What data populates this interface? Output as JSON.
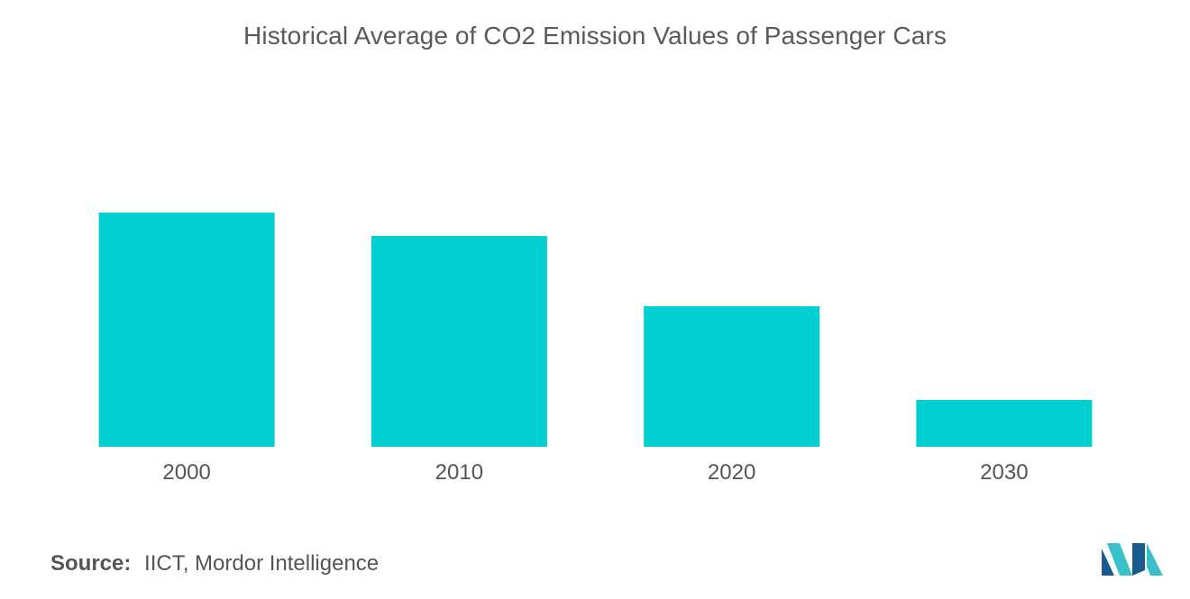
{
  "chart_data": {
    "type": "bar",
    "title": "Historical Average of CO2 Emission Values of Passenger Cars",
    "categories": [
      "2000",
      "2010",
      "2020",
      "2030"
    ],
    "values": [
      100,
      90,
      60,
      20
    ],
    "ylim": [
      0,
      100
    ],
    "xlabel": "",
    "ylabel": "",
    "grid": false,
    "legend": "none",
    "bar_color": "#00cfd1"
  },
  "source": {
    "label": "Source:",
    "text": "IICT, Mordor Intelligence"
  },
  "logo": {
    "icon": "mordor-intelligence-logo-icon",
    "color_dark": "#1b5a8c",
    "color_light": "#39c1c9"
  }
}
